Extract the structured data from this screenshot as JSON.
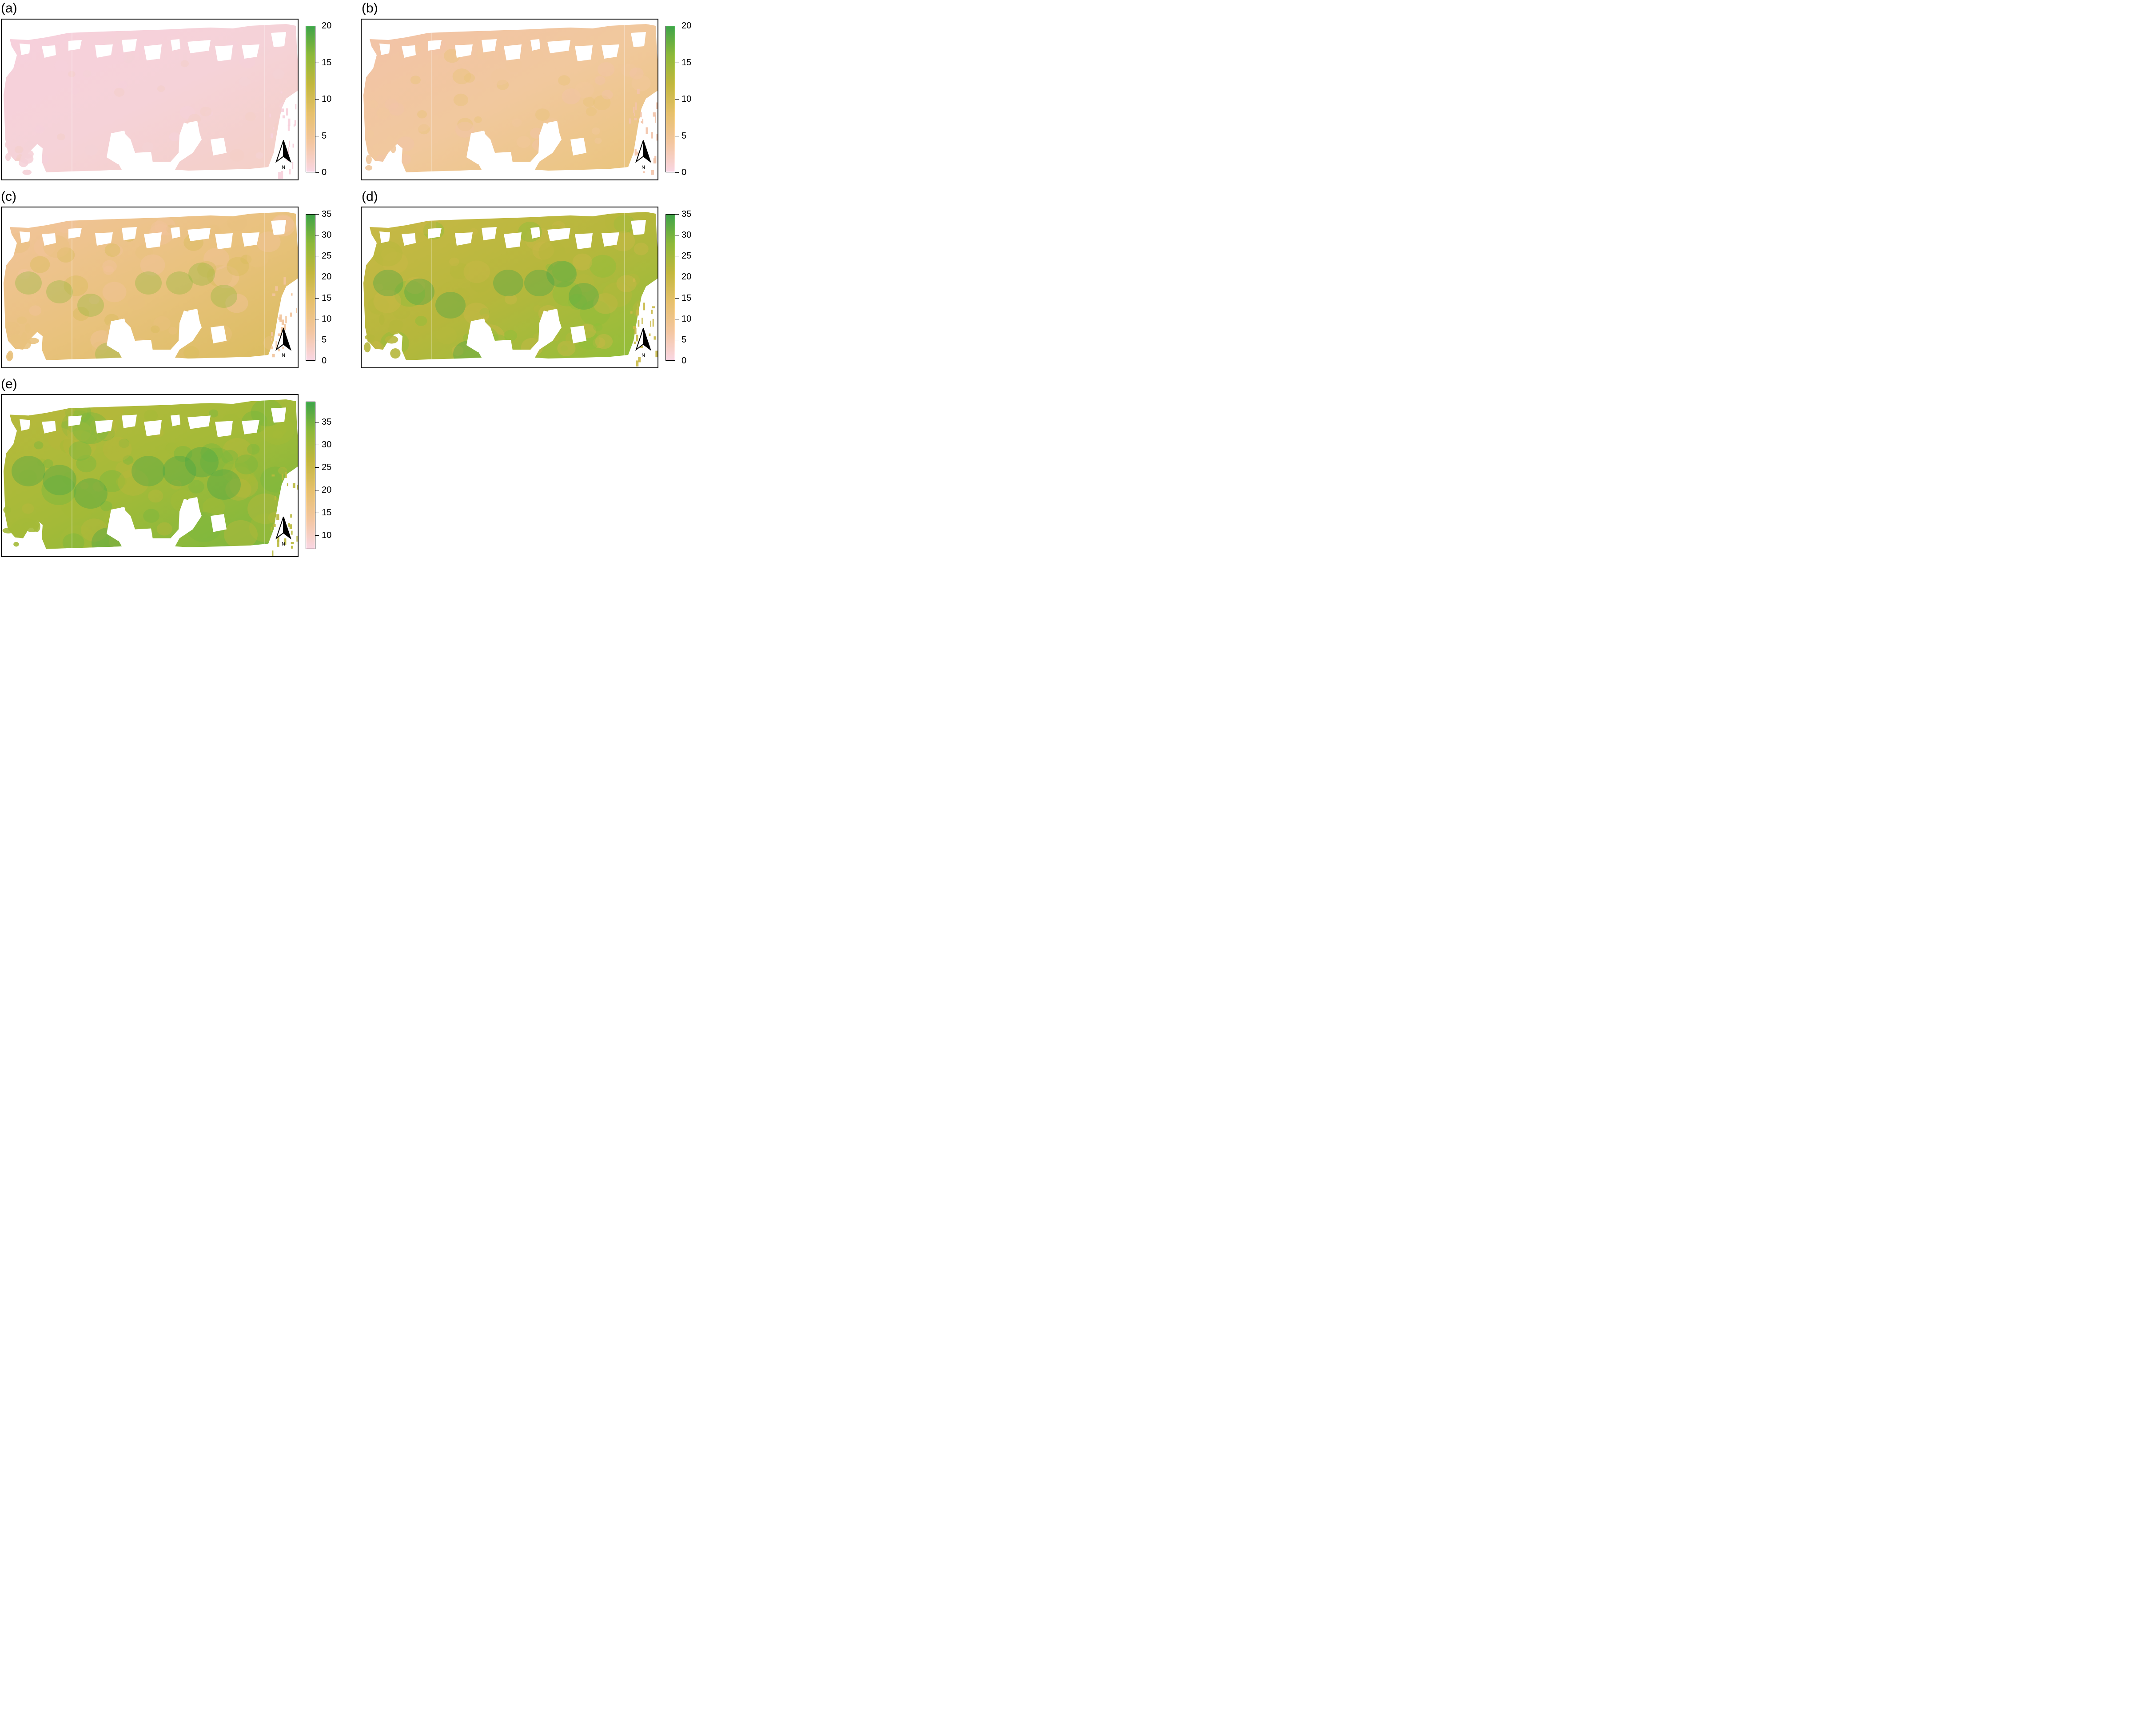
{
  "figure": {
    "panels": [
      {
        "id": "a",
        "label": "(a)",
        "legend": {
          "ticks": [
            "0",
            "5",
            "10",
            "15",
            "20"
          ],
          "min": 0,
          "max": 20
        },
        "colors": [
          "#f7d0dc",
          "#f5d2d8",
          "#f4cfc5"
        ],
        "blobs": 0
      },
      {
        "id": "b",
        "label": "(b)",
        "legend": {
          "ticks": [
            "0",
            "5",
            "10",
            "15",
            "20"
          ],
          "min": 0,
          "max": 20
        },
        "colors": [
          "#f2c3a8",
          "#f1c89d",
          "#e9c47b"
        ],
        "blobs": 1
      },
      {
        "id": "c",
        "label": "(c)",
        "legend": {
          "ticks": [
            "0",
            "5",
            "10",
            "15",
            "20",
            "25",
            "30",
            "35"
          ],
          "min": 0,
          "max": 35
        },
        "colors": [
          "#f2c49c",
          "#e9c27e",
          "#d9bc5d"
        ],
        "blobs": 2
      },
      {
        "id": "d",
        "label": "(d)",
        "legend": {
          "ticks": [
            "0",
            "5",
            "10",
            "15",
            "20",
            "25",
            "30",
            "35"
          ],
          "min": 0,
          "max": 35
        },
        "colors": [
          "#c9b947",
          "#b6b73c",
          "#8fbf3a"
        ],
        "blobs": 3
      },
      {
        "id": "e",
        "label": "(e)",
        "legend": {
          "ticks": [
            "10",
            "15",
            "20",
            "25",
            "30",
            "35"
          ],
          "min": 7,
          "max": 39.5
        },
        "colors": [
          "#b9b93c",
          "#a4ba38",
          "#79b83e"
        ],
        "blobs": 4
      }
    ],
    "north_arrow": {
      "letter": "N"
    },
    "colorscale": [
      "#f9d6e3",
      "#f3c6a0",
      "#e6c06c",
      "#c2b73e",
      "#8db83a",
      "#3fa349"
    ]
  }
}
